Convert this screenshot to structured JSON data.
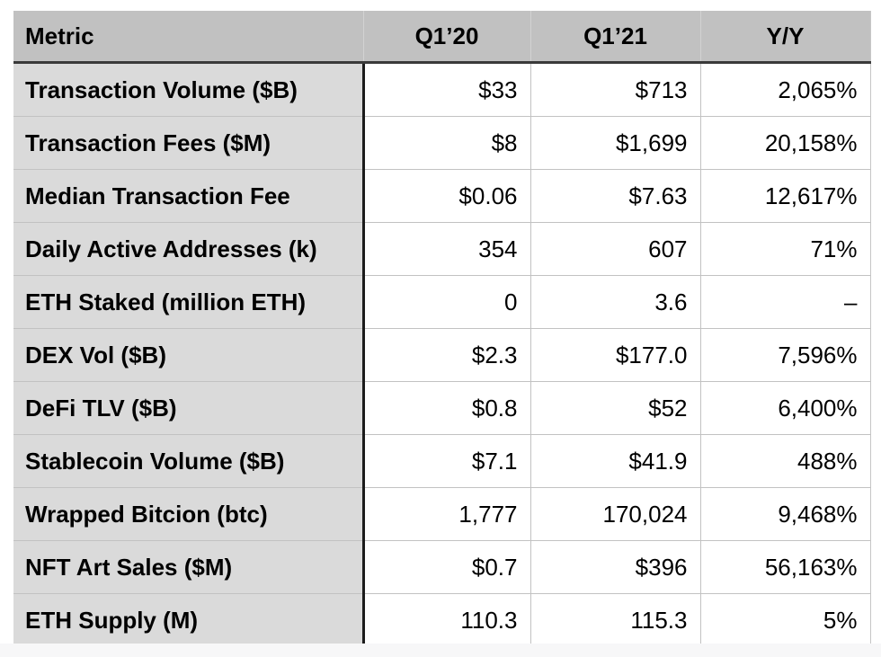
{
  "table": {
    "columns": [
      "Metric",
      "Q1’20",
      "Q1’21",
      "Y/Y"
    ],
    "rows": [
      [
        "Transaction Volume ($B)",
        "$33",
        "$713",
        "2,065%"
      ],
      [
        "Transaction Fees ($M)",
        "$8",
        "$1,699",
        "20,158%"
      ],
      [
        "Median Transaction Fee",
        "$0.06",
        "$7.63",
        "12,617%"
      ],
      [
        "Daily Active Addresses (k)",
        "354",
        "607",
        "71%"
      ],
      [
        "ETH Staked (million ETH)",
        "0",
        "3.6",
        "–"
      ],
      [
        "DEX Vol ($B)",
        "$2.3",
        "$177.0",
        "7,596%"
      ],
      [
        "DeFi TLV ($B)",
        "$0.8",
        "$52",
        "6,400%"
      ],
      [
        "Stablecoin Volume ($B)",
        "$7.1",
        "$41.9",
        "488%"
      ],
      [
        "Wrapped Bitcion (btc)",
        "1,777",
        "170,024",
        "9,468%"
      ],
      [
        "NFT Art Sales ($M)",
        "$0.7",
        "$396",
        "56,163%"
      ],
      [
        "ETH Supply (M)",
        "110.3",
        "115.3",
        "5%"
      ]
    ]
  },
  "colors": {
    "header_bg": "#c1c1c1",
    "metric_column_bg": "#dadada",
    "value_cell_bg": "#ffffff",
    "header_bottom_border": "#3a3a3a",
    "metric_column_border": "#1c1c1c",
    "grid_line": "#c2c2c2",
    "text": "#000000"
  },
  "chart_data": {
    "type": "table",
    "title": "",
    "columns": [
      "Metric",
      "Q1’20",
      "Q1’21",
      "Y/Y"
    ],
    "rows": [
      {
        "metric": "Transaction Volume ($B)",
        "q1_20": 33,
        "q1_21": 713,
        "yoy_pct": 2065
      },
      {
        "metric": "Transaction Fees ($M)",
        "q1_20": 8,
        "q1_21": 1699,
        "yoy_pct": 20158
      },
      {
        "metric": "Median Transaction Fee",
        "q1_20": 0.06,
        "q1_21": 7.63,
        "yoy_pct": 12617
      },
      {
        "metric": "Daily Active Addresses (k)",
        "q1_20": 354,
        "q1_21": 607,
        "yoy_pct": 71
      },
      {
        "metric": "ETH Staked (million ETH)",
        "q1_20": 0,
        "q1_21": 3.6,
        "yoy_pct": null
      },
      {
        "metric": "DEX Vol ($B)",
        "q1_20": 2.3,
        "q1_21": 177.0,
        "yoy_pct": 7596
      },
      {
        "metric": "DeFi TLV ($B)",
        "q1_20": 0.8,
        "q1_21": 52,
        "yoy_pct": 6400
      },
      {
        "metric": "Stablecoin Volume ($B)",
        "q1_20": 7.1,
        "q1_21": 41.9,
        "yoy_pct": 488
      },
      {
        "metric": "Wrapped Bitcion (btc)",
        "q1_20": 1777,
        "q1_21": 170024,
        "yoy_pct": 9468
      },
      {
        "metric": "NFT Art Sales ($M)",
        "q1_20": 0.7,
        "q1_21": 396,
        "yoy_pct": 56163
      },
      {
        "metric": "ETH Supply (M)",
        "q1_20": 110.3,
        "q1_21": 115.3,
        "yoy_pct": 5
      }
    ]
  }
}
